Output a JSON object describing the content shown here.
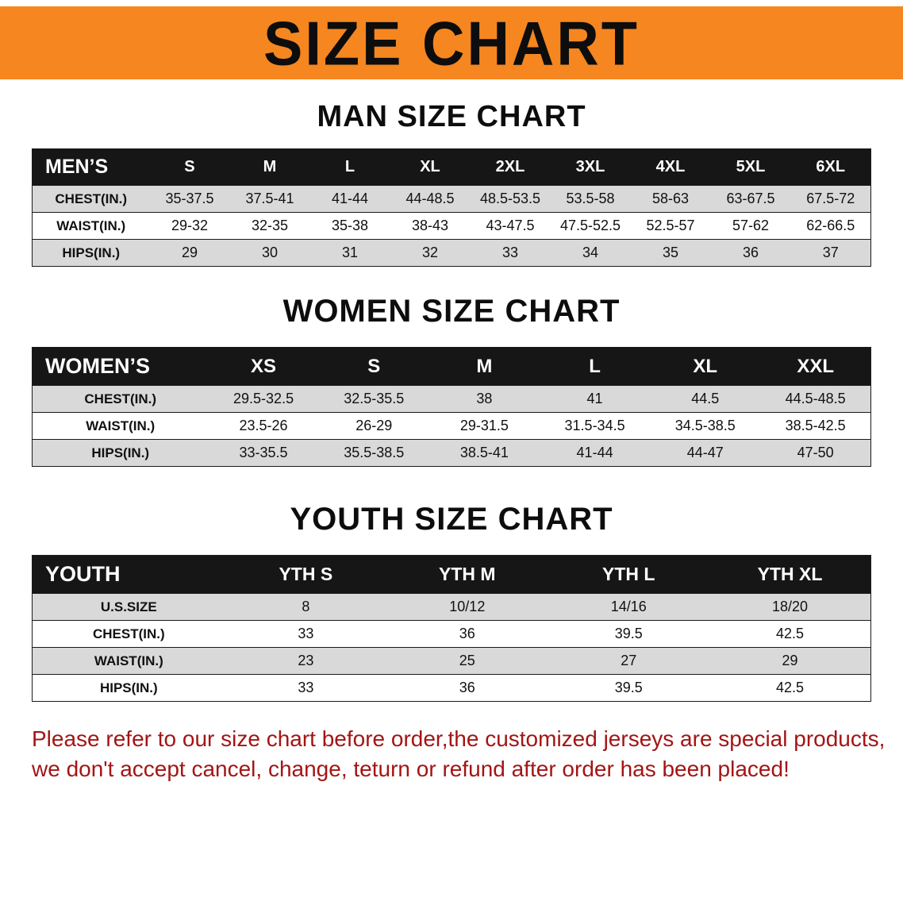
{
  "colors": {
    "banner_bg": "#f6861f",
    "header_bg": "#161616",
    "row_alt_bg": "#d9d9d9",
    "note_red": "#a31515"
  },
  "banner": {
    "title": "SIZE CHART"
  },
  "men": {
    "heading": "MAN SIZE CHART",
    "label": "MEN’S",
    "columns": [
      "S",
      "M",
      "L",
      "XL",
      "2XL",
      "3XL",
      "4XL",
      "5XL",
      "6XL"
    ],
    "rows": [
      {
        "label": "CHEST(IN.)",
        "values": [
          "35-37.5",
          "37.5-41",
          "41-44",
          "44-48.5",
          "48.5-53.5",
          "53.5-58",
          "58-63",
          "63-67.5",
          "67.5-72"
        ]
      },
      {
        "label": "WAIST(IN.)",
        "values": [
          "29-32",
          "32-35",
          "35-38",
          "38-43",
          "43-47.5",
          "47.5-52.5",
          "52.5-57",
          "57-62",
          "62-66.5"
        ]
      },
      {
        "label": "HIPS(IN.)",
        "values": [
          "29",
          "30",
          "31",
          "32",
          "33",
          "34",
          "35",
          "36",
          "37"
        ]
      }
    ]
  },
  "women": {
    "heading": "WOMEN SIZE CHART",
    "label": "WOMEN’S",
    "columns": [
      "XS",
      "S",
      "M",
      "L",
      "XL",
      "XXL"
    ],
    "rows": [
      {
        "label": "CHEST(IN.)",
        "values": [
          "29.5-32.5",
          "32.5-35.5",
          "38",
          "41",
          "44.5",
          "44.5-48.5"
        ]
      },
      {
        "label": "WAIST(IN.)",
        "values": [
          "23.5-26",
          "26-29",
          "29-31.5",
          "31.5-34.5",
          "34.5-38.5",
          "38.5-42.5"
        ]
      },
      {
        "label": "HIPS(IN.)",
        "values": [
          "33-35.5",
          "35.5-38.5",
          "38.5-41",
          "41-44",
          "44-47",
          "47-50"
        ]
      }
    ]
  },
  "youth": {
    "heading": "YOUTH SIZE CHART",
    "label": "YOUTH",
    "columns": [
      "YTH S",
      "YTH M",
      "YTH L",
      "YTH XL"
    ],
    "rows": [
      {
        "label": "U.S.SIZE",
        "values": [
          "8",
          "10/12",
          "14/16",
          "18/20"
        ]
      },
      {
        "label": "CHEST(IN.)",
        "values": [
          "33",
          "36",
          "39.5",
          "42.5"
        ]
      },
      {
        "label": "WAIST(IN.)",
        "values": [
          "23",
          "25",
          "27",
          "29"
        ]
      },
      {
        "label": "HIPS(IN.)",
        "values": [
          "33",
          "36",
          "39.5",
          "42.5"
        ]
      }
    ]
  },
  "note": {
    "line1": "Please refer to our size chart before order,the customized jerseys are special products,",
    "line2": "we don't accept cancel, change, teturn or refund after order has been placed!"
  }
}
